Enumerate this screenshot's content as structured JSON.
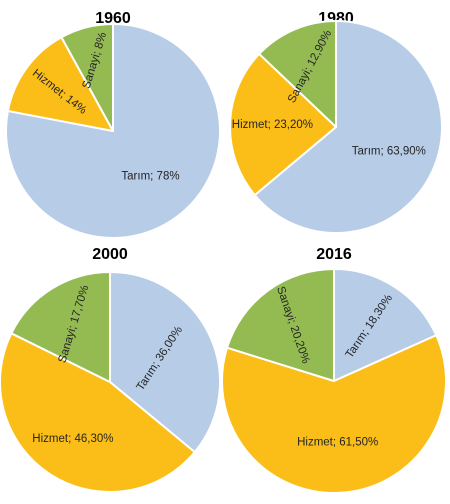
{
  "colors": {
    "tarim": "#b7cce6",
    "hizmet": "#fbbd17",
    "sanayi": "#93bb52"
  },
  "chart_data": [
    {
      "type": "pie",
      "title": "1960",
      "slices": [
        {
          "category": "Tarım",
          "value": 78,
          "label": "Tarım; 78%",
          "color": "#b7cce6"
        },
        {
          "category": "Hizmet",
          "value": 14,
          "label": "Hizmet; 14%",
          "color": "#fbbd17"
        },
        {
          "category": "Sanayi",
          "value": 8,
          "label": "Sanayi; 8%",
          "color": "#93bb52"
        }
      ]
    },
    {
      "type": "pie",
      "title": "1980",
      "slices": [
        {
          "category": "Tarım",
          "value": 63.9,
          "label": "Tarım; 63,90%",
          "color": "#b7cce6"
        },
        {
          "category": "Hizmet",
          "value": 23.2,
          "label": "Hizmet; 23,20%",
          "color": "#fbbd17"
        },
        {
          "category": "Sanayi",
          "value": 12.9,
          "label": "Sanayi; 12,90%",
          "color": "#93bb52"
        }
      ]
    },
    {
      "type": "pie",
      "title": "2000",
      "slices": [
        {
          "category": "Tarım",
          "value": 36,
          "label": "Tarım; 36,00%",
          "color": "#b7cce6"
        },
        {
          "category": "Hizmet",
          "value": 46.3,
          "label": "Hizmet; 46,30%",
          "color": "#fbbd17"
        },
        {
          "category": "Sanayi",
          "value": 17.7,
          "label": "Sanayi; 17,70%",
          "color": "#93bb52"
        }
      ]
    },
    {
      "type": "pie",
      "title": "2016",
      "slices": [
        {
          "category": "Tarım",
          "value": 18.3,
          "label": "Tarım; 18,30%",
          "color": "#b7cce6"
        },
        {
          "category": "Hizmet",
          "value": 61.5,
          "label": "Hizmet; 61,50%",
          "color": "#fbbd17"
        },
        {
          "category": "Sanayi",
          "value": 20.2,
          "label": "Sanayi; 20,20%",
          "color": "#93bb52"
        }
      ]
    }
  ]
}
